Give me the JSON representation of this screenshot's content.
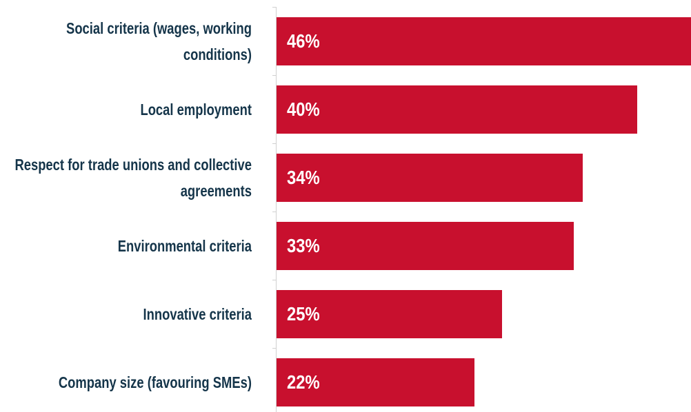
{
  "chart_data": {
    "type": "bar",
    "orientation": "horizontal",
    "categories": [
      "Social criteria (wages, working conditions)",
      "Local employment",
      "Respect for trade unions and collective agreements",
      "Environmental criteria",
      "Innovative criteria",
      "Company size (favouring SMEs)"
    ],
    "values": [
      46,
      40,
      34,
      33,
      25,
      22
    ],
    "value_labels": [
      "46%",
      "40%",
      "34%",
      "33%",
      "25%",
      "22%"
    ],
    "color": "#c8102e"
  }
}
